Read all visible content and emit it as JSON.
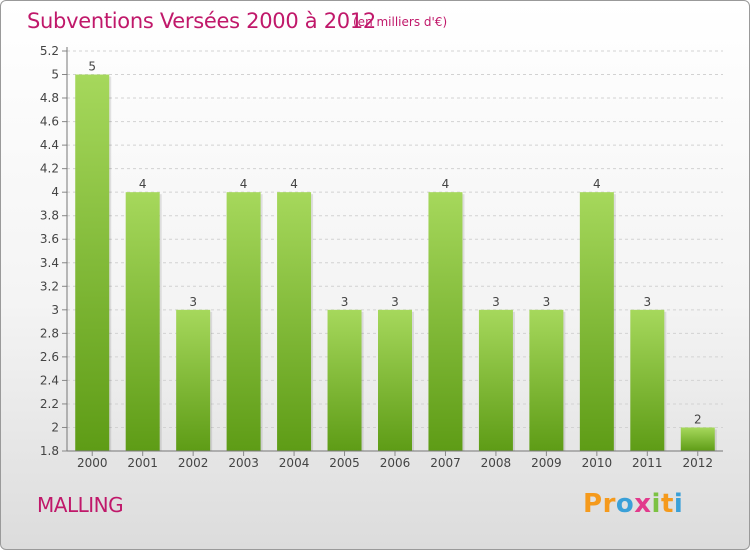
{
  "header": {
    "title": "Subventions Versées 2000 à 2012",
    "subtitle": "(en milliers d'€)"
  },
  "footer": {
    "commune": "MALLING",
    "logo": [
      "P",
      "r",
      "o",
      "x",
      "i",
      "t",
      "i"
    ]
  },
  "colors": {
    "title": "#c0186a",
    "bar_light": "#a6d85c",
    "bar_dark": "#5e9c16",
    "logo": [
      "#f59a1c",
      "#f59a1c",
      "#3aa0d8",
      "#e23a8c",
      "#7cc243",
      "#f59a1c",
      "#3aa0d8"
    ]
  },
  "chart_data": {
    "type": "bar",
    "title": "Subventions Versées 2000 à 2012",
    "subtitle": "(en milliers d'€)",
    "categories": [
      "2000",
      "2001",
      "2002",
      "2003",
      "2004",
      "2005",
      "2006",
      "2007",
      "2008",
      "2009",
      "2010",
      "2011",
      "2012"
    ],
    "values": [
      5,
      4,
      3,
      4,
      4,
      3,
      3,
      4,
      3,
      3,
      4,
      3,
      2
    ],
    "data_labels": [
      "5",
      "4",
      "3",
      "4",
      "4",
      "3",
      "3",
      "4",
      "3",
      "3",
      "4",
      "3",
      "2"
    ],
    "ytick_labels": [
      "1.8",
      "2",
      "2.2",
      "2.4",
      "2.6",
      "2.8",
      "3",
      "3.2",
      "3.4",
      "3.6",
      "3.8",
      "4",
      "4.2",
      "4.4",
      "4.6",
      "4.8",
      "5",
      "5.2"
    ],
    "ylim": [
      1.8,
      5.2
    ],
    "ylabel": "",
    "xlabel": "",
    "grid": true
  }
}
